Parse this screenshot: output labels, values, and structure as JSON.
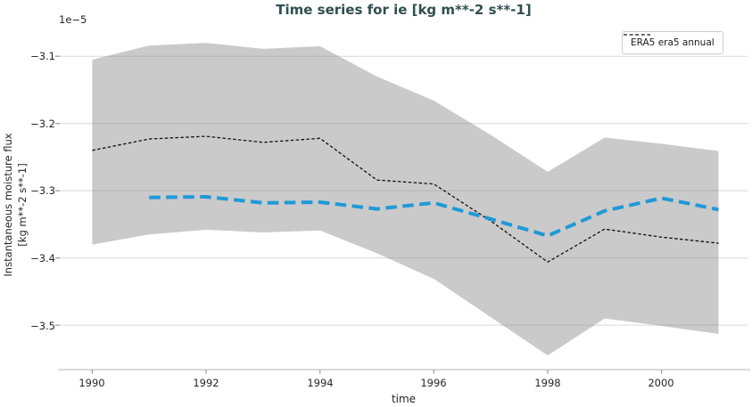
{
  "title": "Time series for ie [kg m**-2 s**-1]",
  "offset_text": "1e−5",
  "xlabel": "time",
  "ylabel_line1": "Instantaneous moisture flux",
  "ylabel_line2": "[kg m**-2 s**-1]",
  "legend": {
    "label": "ERA5 era5 annual"
  },
  "colors": {
    "title": "#2f4f4f",
    "text": "#262626",
    "grid": "#d9d9d9",
    "spine": "#c4c4c4",
    "tick": "#999999",
    "band_fill": "#808080",
    "band_opacity": 0.42,
    "era5_line": "#111111",
    "blue_line": "#1f99d8",
    "legend_border": "#cccccc"
  },
  "chart_data": {
    "type": "line",
    "title": "Time series for ie [kg m**-2 s**-1]",
    "xlabel": "time",
    "ylabel": "Instantaneous moisture flux [kg m**-2 s**-1]",
    "y_scale_factor": "1e-5",
    "grid": true,
    "legend_position": "upper right",
    "xlim": [
      1989.43,
      2001.51
    ],
    "ylim": [
      -3.566,
      -3.06
    ],
    "xticks": [
      1990,
      1992,
      1994,
      1996,
      1998,
      2000
    ],
    "xticklabels": [
      "1990",
      "1992",
      "1994",
      "1996",
      "1998",
      "2000"
    ],
    "yticks": [
      -3.1,
      -3.2,
      -3.3,
      -3.4,
      -3.5
    ],
    "yticklabels": [
      "−3.1",
      "−3.2",
      "−3.3",
      "−3.4",
      "−3.5"
    ],
    "series": [
      {
        "name": "ERA5 era5 annual",
        "in_legend": true,
        "style": "thin-black-dashed",
        "x": [
          1990,
          1991,
          1992,
          1993,
          1994,
          1995,
          1996,
          1997,
          1998,
          1999,
          2000,
          2001
        ],
        "values": [
          -3.24,
          -3.223,
          -3.219,
          -3.228,
          -3.222,
          -3.284,
          -3.29,
          -3.345,
          -3.406,
          -3.357,
          -3.369,
          -3.378
        ]
      },
      {
        "name": "",
        "in_legend": false,
        "style": "thick-blue-dashed",
        "x": [
          1991,
          1992,
          1993,
          1994,
          1995,
          1996,
          1997,
          1998,
          1999,
          2000,
          2001
        ],
        "values": [
          -3.31,
          -3.309,
          -3.318,
          -3.317,
          -3.327,
          -3.318,
          -3.342,
          -3.367,
          -3.33,
          -3.311,
          -3.328
        ]
      }
    ],
    "band": {
      "x": [
        1990,
        1991,
        1992,
        1993,
        1994,
        1995,
        1996,
        1997,
        1998,
        1999,
        2000,
        2001
      ],
      "upper": [
        -3.105,
        -3.084,
        -3.08,
        -3.089,
        -3.085,
        -3.13,
        -3.166,
        -3.217,
        -3.272,
        -3.221,
        -3.23,
        -3.241
      ],
      "lower": [
        -3.38,
        -3.365,
        -3.358,
        -3.362,
        -3.359,
        -3.393,
        -3.431,
        -3.488,
        -3.545,
        -3.49,
        -3.501,
        -3.513
      ]
    }
  }
}
